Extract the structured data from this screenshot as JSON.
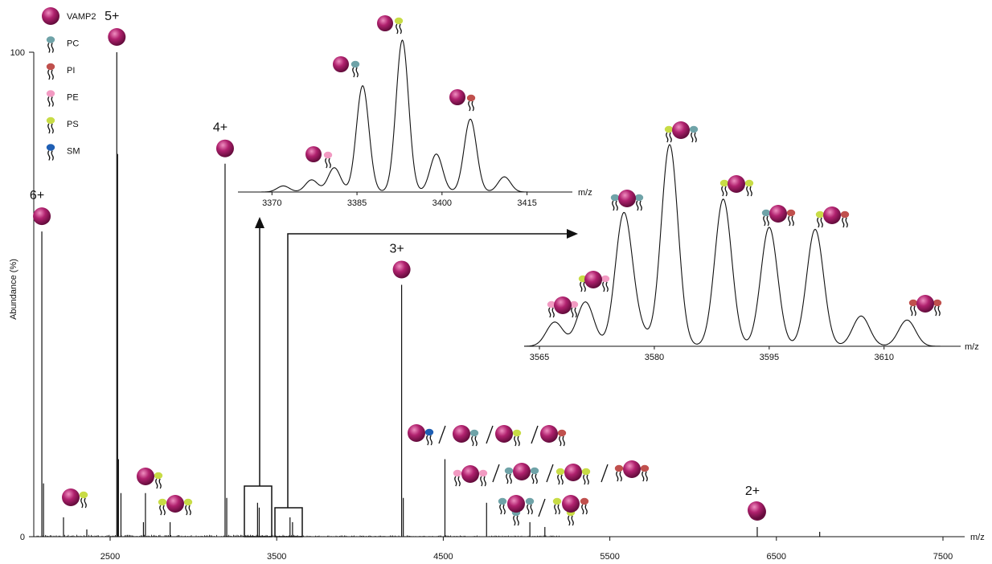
{
  "chart_data": [
    {
      "type": "line",
      "name": "main",
      "xlabel": "m/z",
      "ylabel": "Abundance (%)",
      "xlim": [
        2000,
        7600
      ],
      "ylim": [
        0,
        100
      ],
      "xticks": [
        2500,
        3500,
        4500,
        5500,
        6500,
        7500
      ],
      "yticks": [
        0,
        100
      ],
      "peaks": [
        {
          "x": 2090,
          "y": 63,
          "charge": "6+"
        },
        {
          "x": 2100,
          "y": 11
        },
        {
          "x": 2220,
          "y": 4
        },
        {
          "x": 2360,
          "y": 1.5
        },
        {
          "x": 2540,
          "y": 100,
          "charge": "5+"
        },
        {
          "x": 2545,
          "y": 79
        },
        {
          "x": 2550,
          "y": 16
        },
        {
          "x": 2565,
          "y": 9
        },
        {
          "x": 2700,
          "y": 3
        },
        {
          "x": 2712,
          "y": 9
        },
        {
          "x": 2860,
          "y": 3
        },
        {
          "x": 3190,
          "y": 77,
          "charge": "4+"
        },
        {
          "x": 3200,
          "y": 8
        },
        {
          "x": 3385,
          "y": 7
        },
        {
          "x": 3395,
          "y": 6
        },
        {
          "x": 3580,
          "y": 4
        },
        {
          "x": 3595,
          "y": 3
        },
        {
          "x": 4250,
          "y": 52,
          "charge": "3+"
        },
        {
          "x": 4260,
          "y": 8
        },
        {
          "x": 4510,
          "y": 16
        },
        {
          "x": 4760,
          "y": 7
        },
        {
          "x": 5020,
          "y": 3
        },
        {
          "x": 5110,
          "y": 2
        },
        {
          "x": 6385,
          "y": 2,
          "charge": "2+"
        },
        {
          "x": 6760,
          "y": 1
        }
      ]
    },
    {
      "type": "line",
      "name": "inset-4plus",
      "xlabel": "m/z",
      "xlim": [
        3364,
        3423
      ],
      "xticks": [
        3370,
        3385,
        3400,
        3415
      ],
      "peaks": [
        {
          "x": 3372,
          "y": 0.04
        },
        {
          "x": 3377,
          "y": 0.08
        },
        {
          "x": 3381,
          "y": 0.16
        },
        {
          "x": 3386,
          "y": 0.7
        },
        {
          "x": 3393,
          "y": 1.0
        },
        {
          "x": 3399,
          "y": 0.25
        },
        {
          "x": 3405,
          "y": 0.48
        },
        {
          "x": 3411,
          "y": 0.1
        }
      ]
    },
    {
      "type": "line",
      "name": "inset-3plus",
      "xlabel": "m/z",
      "xlim": [
        3563,
        3620
      ],
      "xticks": [
        3565,
        3580,
        3595,
        3610
      ],
      "peaks": [
        {
          "x": 3567,
          "y": 0.12
        },
        {
          "x": 3571,
          "y": 0.22
        },
        {
          "x": 3576,
          "y": 0.65
        },
        {
          "x": 3578,
          "y": 0.07
        },
        {
          "x": 3582,
          "y": 1.0
        },
        {
          "x": 3589,
          "y": 0.73
        },
        {
          "x": 3595,
          "y": 0.59
        },
        {
          "x": 3601,
          "y": 0.58
        },
        {
          "x": 3607,
          "y": 0.15
        },
        {
          "x": 3613,
          "y": 0.13
        }
      ]
    }
  ],
  "legend": [
    {
      "label": "VAMP2",
      "color": "#b0216e",
      "kind": "protein"
    },
    {
      "label": "PC",
      "color": "#6fa3a8",
      "kind": "lipid"
    },
    {
      "label": "PI",
      "color": "#c0504d",
      "kind": "lipid"
    },
    {
      "label": "PE",
      "color": "#f29ac2",
      "kind": "lipid"
    },
    {
      "label": "PS",
      "color": "#c8dc46",
      "kind": "lipid"
    },
    {
      "label": "SM",
      "color": "#1f5fb4",
      "kind": "lipid"
    }
  ],
  "colors": {
    "protein": "#b0216e",
    "protein_light": "#e87bb6",
    "protein_dark": "#5e0a38",
    "line": "#111111"
  }
}
